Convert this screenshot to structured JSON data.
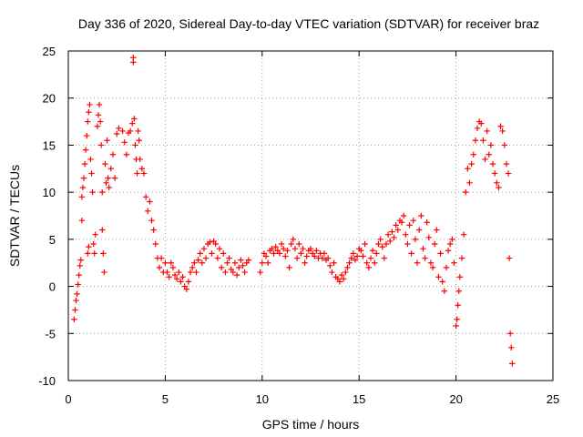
{
  "chart_data": {
    "type": "scatter",
    "title": "Day 336 of 2020, Sidereal Day-to-day VTEC variation (SDTVAR) for receiver braz",
    "xlabel": "GPS time / hours",
    "ylabel": "SDTVAR / TECUs",
    "xlim": [
      0,
      25
    ],
    "ylim": [
      -10,
      25
    ],
    "xticks": [
      "0",
      "5",
      "10",
      "15",
      "20",
      "25"
    ],
    "yticks": [
      "25",
      "20",
      "15",
      "10",
      "5",
      "0",
      "-5",
      "-10"
    ],
    "grid": true,
    "marker": "+",
    "color": "#ff0000",
    "series": [
      {
        "name": "SDTVAR",
        "points": [
          [
            0.3,
            -3.5
          ],
          [
            0.35,
            -2.5
          ],
          [
            0.4,
            -1.5
          ],
          [
            0.45,
            -0.8
          ],
          [
            0.5,
            0.2
          ],
          [
            0.55,
            1.2
          ],
          [
            0.6,
            2.2
          ],
          [
            0.65,
            2.8
          ],
          [
            0.7,
            7
          ],
          [
            0.7,
            9.5
          ],
          [
            0.75,
            10.5
          ],
          [
            0.8,
            11.5
          ],
          [
            0.85,
            13
          ],
          [
            0.9,
            14.5
          ],
          [
            0.95,
            16
          ],
          [
            1.0,
            17.5
          ],
          [
            1.05,
            18.5
          ],
          [
            1.1,
            19.3
          ],
          [
            1.0,
            3.5
          ],
          [
            1.05,
            4.2
          ],
          [
            1.15,
            13.5
          ],
          [
            1.2,
            12
          ],
          [
            1.25,
            10
          ],
          [
            1.3,
            4.5
          ],
          [
            1.35,
            3.5
          ],
          [
            1.4,
            5.5
          ],
          [
            1.5,
            17
          ],
          [
            1.55,
            18.2
          ],
          [
            1.6,
            19.3
          ],
          [
            1.65,
            17.5
          ],
          [
            1.7,
            15
          ],
          [
            1.75,
            10
          ],
          [
            1.75,
            6
          ],
          [
            1.8,
            3.5
          ],
          [
            1.85,
            1.5
          ],
          [
            1.9,
            13
          ],
          [
            1.95,
            11
          ],
          [
            2.0,
            15.5
          ],
          [
            2.05,
            11.5
          ],
          [
            2.1,
            10.5
          ],
          [
            2.2,
            12.5
          ],
          [
            2.3,
            14
          ],
          [
            2.4,
            11.5
          ],
          [
            2.5,
            16.2
          ],
          [
            2.6,
            16.8
          ],
          [
            2.8,
            16.5
          ],
          [
            2.9,
            15.3
          ],
          [
            3.0,
            14
          ],
          [
            3.1,
            16.3
          ],
          [
            3.2,
            16.5
          ],
          [
            3.3,
            17.3
          ],
          [
            3.35,
            23.8
          ],
          [
            3.35,
            24.3
          ],
          [
            3.4,
            17.8
          ],
          [
            3.45,
            15
          ],
          [
            3.5,
            13.5
          ],
          [
            3.55,
            12
          ],
          [
            3.6,
            16.5
          ],
          [
            3.65,
            15.5
          ],
          [
            3.7,
            13.5
          ],
          [
            3.8,
            12.5
          ],
          [
            3.9,
            12
          ],
          [
            4.0,
            9.5
          ],
          [
            4.1,
            8
          ],
          [
            4.2,
            9
          ],
          [
            4.3,
            7
          ],
          [
            4.4,
            6
          ],
          [
            4.5,
            4.5
          ],
          [
            4.6,
            3
          ],
          [
            4.7,
            2
          ],
          [
            4.8,
            3
          ],
          [
            4.9,
            1.5
          ],
          [
            5.0,
            2.5
          ],
          [
            5.1,
            1.5
          ],
          [
            5.2,
            1
          ],
          [
            5.3,
            2.5
          ],
          [
            5.4,
            2
          ],
          [
            5.5,
            1.2
          ],
          [
            5.6,
            0.8
          ],
          [
            5.7,
            1.5
          ],
          [
            5.8,
            0.5
          ],
          [
            5.9,
            1
          ],
          [
            6.0,
            0
          ],
          [
            6.1,
            -0.3
          ],
          [
            6.2,
            0.5
          ],
          [
            6.3,
            1.5
          ],
          [
            6.4,
            2
          ],
          [
            6.5,
            2.5
          ],
          [
            6.6,
            1.5
          ],
          [
            6.7,
            2.8
          ],
          [
            6.8,
            3.5
          ],
          [
            6.9,
            2.5
          ],
          [
            7.0,
            4
          ],
          [
            7.1,
            3
          ],
          [
            7.2,
            4.5
          ],
          [
            7.3,
            4.7
          ],
          [
            7.4,
            3.5
          ],
          [
            7.5,
            4.8
          ],
          [
            7.6,
            4.5
          ],
          [
            7.7,
            3
          ],
          [
            7.8,
            4
          ],
          [
            7.9,
            2
          ],
          [
            8.0,
            3.5
          ],
          [
            8.1,
            1.5
          ],
          [
            8.2,
            2.5
          ],
          [
            8.3,
            3
          ],
          [
            8.4,
            1.8
          ],
          [
            8.5,
            1.5
          ],
          [
            8.6,
            2.5
          ],
          [
            8.7,
            1.2
          ],
          [
            8.8,
            2
          ],
          [
            8.9,
            2.8
          ],
          [
            9.0,
            2.2
          ],
          [
            9.1,
            1.5
          ],
          [
            9.2,
            2.5
          ],
          [
            9.3,
            2.8
          ],
          [
            9.9,
            1.5
          ],
          [
            10.0,
            2.5
          ],
          [
            10.1,
            3.5
          ],
          [
            10.2,
            3.2
          ],
          [
            10.3,
            2.5
          ],
          [
            10.4,
            3.8
          ],
          [
            10.5,
            4
          ],
          [
            10.6,
            3.5
          ],
          [
            10.7,
            4.2
          ],
          [
            10.8,
            3.8
          ],
          [
            10.9,
            3.5
          ],
          [
            11.0,
            4.5
          ],
          [
            11.1,
            4
          ],
          [
            11.2,
            3.2
          ],
          [
            11.3,
            3.8
          ],
          [
            11.4,
            2
          ],
          [
            11.5,
            4.5
          ],
          [
            11.6,
            5
          ],
          [
            11.7,
            4
          ],
          [
            11.8,
            3
          ],
          [
            11.9,
            4.5
          ],
          [
            12.0,
            3.5
          ],
          [
            12.1,
            4
          ],
          [
            12.2,
            2.5
          ],
          [
            12.3,
            3.2
          ],
          [
            12.4,
            3.8
          ],
          [
            12.5,
            4
          ],
          [
            12.6,
            3.5
          ],
          [
            12.7,
            3.2
          ],
          [
            12.8,
            3.8
          ],
          [
            12.9,
            3
          ],
          [
            13.0,
            3.5
          ],
          [
            13.1,
            3
          ],
          [
            13.2,
            3.5
          ],
          [
            13.3,
            2.8
          ],
          [
            13.4,
            3
          ],
          [
            13.5,
            2.2
          ],
          [
            13.6,
            1.5
          ],
          [
            13.7,
            2.5
          ],
          [
            13.8,
            1
          ],
          [
            13.9,
            0.8
          ],
          [
            14.0,
            0.5
          ],
          [
            14.1,
            1.2
          ],
          [
            14.2,
            0.8
          ],
          [
            14.3,
            1.5
          ],
          [
            14.4,
            2
          ],
          [
            14.5,
            2.5
          ],
          [
            14.6,
            3
          ],
          [
            14.7,
            3.5
          ],
          [
            14.8,
            2.8
          ],
          [
            14.9,
            3.2
          ],
          [
            15.0,
            4
          ],
          [
            15.1,
            3.8
          ],
          [
            15.2,
            3.2
          ],
          [
            15.3,
            4.5
          ],
          [
            15.4,
            2.5
          ],
          [
            15.5,
            2
          ],
          [
            15.6,
            3
          ],
          [
            15.7,
            3.8
          ],
          [
            15.8,
            2.5
          ],
          [
            15.9,
            3.5
          ],
          [
            16.0,
            4.5
          ],
          [
            16.1,
            5
          ],
          [
            16.2,
            4.2
          ],
          [
            16.3,
            3
          ],
          [
            16.4,
            4.5
          ],
          [
            16.5,
            5.5
          ],
          [
            16.6,
            4.8
          ],
          [
            16.7,
            5.8
          ],
          [
            16.8,
            5.2
          ],
          [
            16.9,
            6.5
          ],
          [
            17.0,
            6
          ],
          [
            17.1,
            7
          ],
          [
            17.2,
            6.8
          ],
          [
            17.3,
            7.5
          ],
          [
            17.4,
            5.5
          ],
          [
            17.5,
            4.5
          ],
          [
            17.6,
            6.5
          ],
          [
            17.7,
            3.5
          ],
          [
            17.8,
            7
          ],
          [
            17.9,
            5
          ],
          [
            18.0,
            2.5
          ],
          [
            18.1,
            6
          ],
          [
            18.2,
            7.5
          ],
          [
            18.3,
            4
          ],
          [
            18.4,
            3
          ],
          [
            18.5,
            6.8
          ],
          [
            18.6,
            5.2
          ],
          [
            18.7,
            2.5
          ],
          [
            18.8,
            2
          ],
          [
            18.9,
            4.5
          ],
          [
            19.0,
            6
          ],
          [
            19.1,
            1
          ],
          [
            19.2,
            3.5
          ],
          [
            19.3,
            0.5
          ],
          [
            19.4,
            -0.5
          ],
          [
            19.5,
            2
          ],
          [
            19.6,
            3.8
          ],
          [
            19.7,
            4.5
          ],
          [
            19.8,
            5
          ],
          [
            19.9,
            2.5
          ],
          [
            20.0,
            -4.2
          ],
          [
            20.05,
            -3.5
          ],
          [
            20.1,
            -2
          ],
          [
            20.15,
            -0.5
          ],
          [
            20.2,
            1
          ],
          [
            20.3,
            3
          ],
          [
            20.4,
            5.5
          ],
          [
            20.5,
            10
          ],
          [
            20.6,
            12.5
          ],
          [
            20.7,
            11
          ],
          [
            20.8,
            13
          ],
          [
            20.9,
            14
          ],
          [
            21.0,
            15.5
          ],
          [
            21.1,
            16.8
          ],
          [
            21.2,
            17.5
          ],
          [
            21.3,
            17.3
          ],
          [
            21.4,
            15.5
          ],
          [
            21.5,
            13.5
          ],
          [
            21.6,
            16.5
          ],
          [
            21.7,
            14
          ],
          [
            21.8,
            15
          ],
          [
            21.9,
            13
          ],
          [
            22.0,
            12
          ],
          [
            22.1,
            11
          ],
          [
            22.2,
            10.5
          ],
          [
            22.3,
            17
          ],
          [
            22.4,
            16.5
          ],
          [
            22.5,
            15
          ],
          [
            22.6,
            13
          ],
          [
            22.7,
            12
          ],
          [
            22.75,
            3
          ],
          [
            22.8,
            -5
          ],
          [
            22.85,
            -6.5
          ],
          [
            22.9,
            -8.2
          ]
        ]
      }
    ]
  }
}
